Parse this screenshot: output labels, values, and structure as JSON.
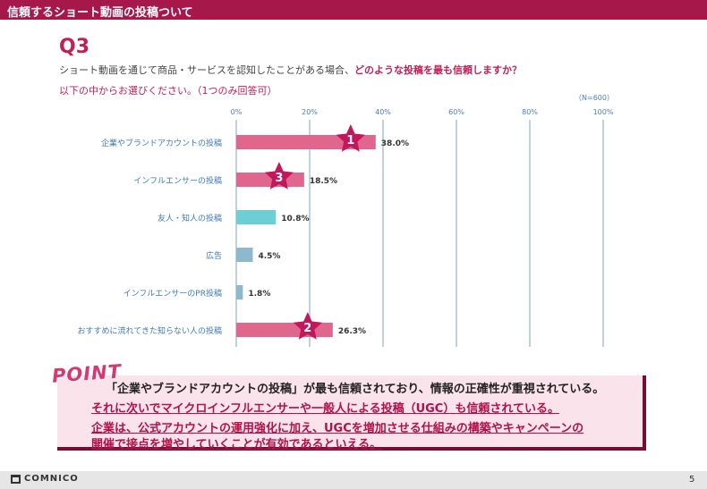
{
  "header": {
    "title": "信頼するショート動画の投稿ついて"
  },
  "question": {
    "label": "Q3",
    "text_prefix": "ショート動画を通じて商品・サービスを認知したことがある場合、",
    "text_emphasis": "どのような投稿を最も信頼しますか？",
    "instruction": "以下の中からお選びください。（1つのみ回答可）"
  },
  "chart_data": {
    "type": "bar",
    "orientation": "horizontal",
    "sample_note": "（N=600）",
    "categories": [
      "企業やブランドアカウントの投稿",
      "インフルエンサーの投稿",
      "友人・知人の投稿",
      "広告",
      "インフルエンサーのPR投稿",
      "おすすめに流れてきた知らない人の投稿"
    ],
    "values": [
      38.0,
      18.5,
      10.8,
      4.5,
      1.8,
      26.3
    ],
    "value_labels": [
      "38.0%",
      "18.5%",
      "10.8%",
      "4.5%",
      "1.8%",
      "26.3%"
    ],
    "ranks": [
      "1",
      "3",
      "",
      "",
      "",
      "2"
    ],
    "xlim": [
      0,
      100
    ],
    "ticks": [
      0,
      20,
      40,
      60,
      80,
      100
    ],
    "tick_labels": [
      "0%",
      "20%",
      "40%",
      "60%",
      "80%",
      "100%"
    ],
    "colors": [
      "#e0668e",
      "#e0668e",
      "#6ccfd6",
      "#8eb8cc",
      "#8eb8cc",
      "#e0668e"
    ],
    "star_color": "#c2185b",
    "grid_color": "#7aa3c9"
  },
  "point": {
    "tag": "POINT",
    "line1": "「企業やブランドアカウントの投稿」が最も信頼されており、情報の正確性が重視されている。",
    "line2": "それに次いでマイクロインフルエンサーや一般人による投稿（UGC）も信頼されている。",
    "line3": "企業は、公式アカウントの運用強化に加え、UGCを増加させる仕組みの構築やキャンペーンの",
    "line4": "開催で接点を増やしていくことが有効であるといえる。"
  },
  "footer": {
    "brand": "COMNICO",
    "page": "5"
  }
}
